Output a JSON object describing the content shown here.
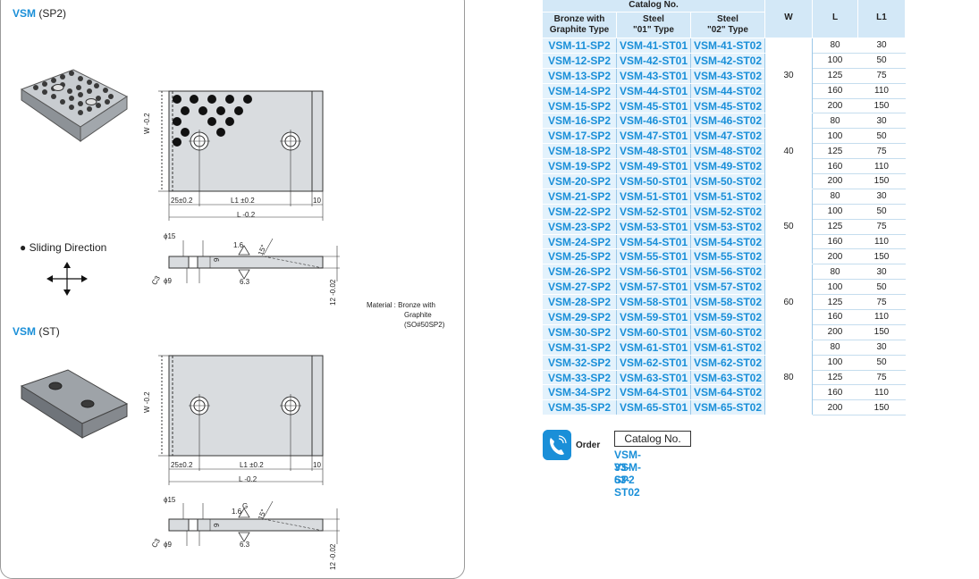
{
  "sections": [
    {
      "code": "VSM",
      "variant": "(SP2)"
    },
    {
      "code": "VSM",
      "variant": "(ST)"
    }
  ],
  "sliding_direction": "Sliding Direction",
  "material": {
    "label": "Material : Bronze with",
    "line2": "Graphite",
    "line3": "(SO#50SP2)"
  },
  "dims": {
    "w": "W",
    "w_tol": "-0.2",
    "w_tol_top": "0",
    "a25": "25",
    "a25_tol": "±0.2",
    "l1": "L1",
    "l1_tol": "±0.2",
    "ten": "10",
    "l": "L",
    "l_tol": "-0.2",
    "l_tol_top": "0",
    "phi15": "ϕ15",
    "phi9": "ϕ9",
    "nine": "9",
    "r16": "1.6",
    "r63": "6.3",
    "ang": "15°",
    "g": "G",
    "c3": "C3",
    "t12": "12",
    "t12_tol": "-0.02",
    "t12_tol_top": "0"
  },
  "table": {
    "header_catalog": "Catalog No.",
    "col_bronze": "Bronze with",
    "col_bronze2": "Graphite Type",
    "col_steel1": "Steel",
    "col_steel1b": "\"01\" Type",
    "col_steel2": "Steel",
    "col_steel2b": "\"02\" Type",
    "col_w": "W",
    "col_l": "L",
    "col_l1": "L1",
    "rows": [
      [
        "VSM-11-SP2",
        "VSM-41-ST01",
        "VSM-41-ST02",
        "80",
        "30"
      ],
      [
        "VSM-12-SP2",
        "VSM-42-ST01",
        "VSM-42-ST02",
        "100",
        "50"
      ],
      [
        "VSM-13-SP2",
        "VSM-43-ST01",
        "VSM-43-ST02",
        "125",
        "75"
      ],
      [
        "VSM-14-SP2",
        "VSM-44-ST01",
        "VSM-44-ST02",
        "160",
        "110"
      ],
      [
        "VSM-15-SP2",
        "VSM-45-ST01",
        "VSM-45-ST02",
        "200",
        "150"
      ],
      [
        "VSM-16-SP2",
        "VSM-46-ST01",
        "VSM-46-ST02",
        "80",
        "30"
      ],
      [
        "VSM-17-SP2",
        "VSM-47-ST01",
        "VSM-47-ST02",
        "100",
        "50"
      ],
      [
        "VSM-18-SP2",
        "VSM-48-ST01",
        "VSM-48-ST02",
        "125",
        "75"
      ],
      [
        "VSM-19-SP2",
        "VSM-49-ST01",
        "VSM-49-ST02",
        "160",
        "110"
      ],
      [
        "VSM-20-SP2",
        "VSM-50-ST01",
        "VSM-50-ST02",
        "200",
        "150"
      ],
      [
        "VSM-21-SP2",
        "VSM-51-ST01",
        "VSM-51-ST02",
        "80",
        "30"
      ],
      [
        "VSM-22-SP2",
        "VSM-52-ST01",
        "VSM-52-ST02",
        "100",
        "50"
      ],
      [
        "VSM-23-SP2",
        "VSM-53-ST01",
        "VSM-53-ST02",
        "125",
        "75"
      ],
      [
        "VSM-24-SP2",
        "VSM-54-ST01",
        "VSM-54-ST02",
        "160",
        "110"
      ],
      [
        "VSM-25-SP2",
        "VSM-55-ST01",
        "VSM-55-ST02",
        "200",
        "150"
      ],
      [
        "VSM-26-SP2",
        "VSM-56-ST01",
        "VSM-56-ST02",
        "80",
        "30"
      ],
      [
        "VSM-27-SP2",
        "VSM-57-ST01",
        "VSM-57-ST02",
        "100",
        "50"
      ],
      [
        "VSM-28-SP2",
        "VSM-58-ST01",
        "VSM-58-ST02",
        "125",
        "75"
      ],
      [
        "VSM-29-SP2",
        "VSM-59-ST01",
        "VSM-59-ST02",
        "160",
        "110"
      ],
      [
        "VSM-30-SP2",
        "VSM-60-ST01",
        "VSM-60-ST02",
        "200",
        "150"
      ],
      [
        "VSM-31-SP2",
        "VSM-61-ST01",
        "VSM-61-ST02",
        "80",
        "30"
      ],
      [
        "VSM-32-SP2",
        "VSM-62-ST01",
        "VSM-62-ST02",
        "100",
        "50"
      ],
      [
        "VSM-33-SP2",
        "VSM-63-ST01",
        "VSM-63-ST02",
        "125",
        "75"
      ],
      [
        "VSM-34-SP2",
        "VSM-64-ST01",
        "VSM-64-ST02",
        "160",
        "110"
      ],
      [
        "VSM-35-SP2",
        "VSM-65-ST01",
        "VSM-65-ST02",
        "200",
        "150"
      ]
    ],
    "w_groups": [
      "30",
      "40",
      "50",
      "60",
      "80"
    ]
  },
  "order": {
    "label": "Order",
    "catalog_header": "Catalog No.",
    "examples": [
      "VSM-33-SP2",
      "VSM-63-ST02"
    ]
  },
  "colors": {
    "accent": "#1a8fd8",
    "header_bg": "#d3e8f7",
    "cell_bg": "#e3f2fc"
  },
  "icons": [
    "phone-icon",
    "arrows-icon"
  ]
}
